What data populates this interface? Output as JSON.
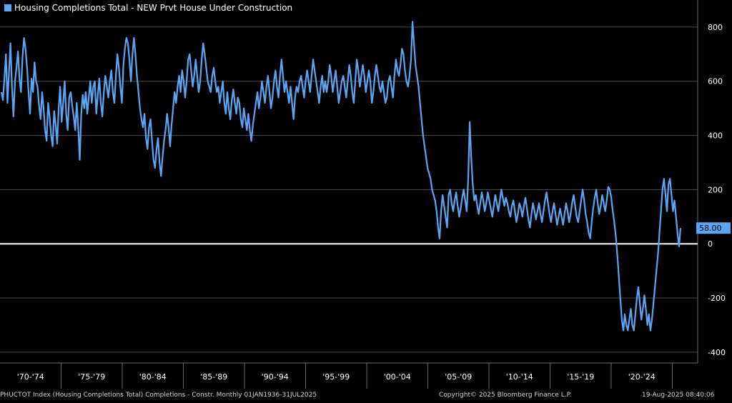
{
  "legend": {
    "label": "Housing Completions Total - NEW Prvt House Under Construction"
  },
  "footer": {
    "index": "PHUCTOT Index (Housing Completions Total) Completions - Constr. Monthly 01JAN1936-31JUL2025",
    "copyright": "Copyright© 2025 Bloomberg Finance L.P.",
    "timestamp": "19-Aug-2025 08:40:06"
  },
  "chart_data": {
    "type": "line",
    "title": "Housing Completions Total - NEW Prvt House Under Construction",
    "ylim": [
      -440,
      900
    ],
    "yticks": [
      800,
      600,
      400,
      200,
      0,
      -200,
      -400
    ],
    "x_tick_labels": [
      "'70-'74",
      "'75-'79",
      "'80-'84",
      "'85-'89",
      "'90-'94",
      "'95-'99",
      "'00-'04",
      "'05-'09",
      "'10-'14",
      "'15-'19",
      "'20-'24"
    ],
    "x_start": "1970-01",
    "x_end": "2025-07",
    "last_value": 58.0,
    "last_value_label": "58.00",
    "grid": true,
    "colors": {
      "line": "#5aa6f5",
      "zero_line": "#ffffff",
      "grid": "#4a4a4a",
      "last_value_bg": "#5aa6f5"
    },
    "series": [
      {
        "values": [
          560,
          530,
          610,
          700,
          520,
          630,
          740,
          580,
          470,
          600,
          650,
          710,
          610,
          560,
          690,
          760,
          720,
          650,
          560,
          480,
          610,
          560,
          670,
          600,
          580,
          510,
          460,
          560,
          500,
          420,
          380,
          520,
          470,
          400,
          360,
          490,
          440,
          370,
          500,
          580,
          450,
          520,
          600,
          480,
          420,
          540,
          560,
          510,
          470,
          420,
          520,
          430,
          310,
          480,
          550,
          500,
          560,
          480,
          540,
          600,
          520,
          580,
          600,
          480,
          550,
          610,
          520,
          470,
          560,
          620,
          580,
          540,
          600,
          640,
          560,
          520,
          620,
          700,
          650,
          580,
          520,
          660,
          720,
          760,
          740,
          680,
          600,
          700,
          760,
          700,
          620,
          560,
          500,
          460,
          430,
          480,
          390,
          350,
          430,
          460,
          380,
          310,
          280,
          350,
          390,
          300,
          250,
          320,
          380,
          420,
          480,
          430,
          360,
          440,
          500,
          560,
          520,
          580,
          620,
          560,
          640,
          600,
          540,
          600,
          680,
          700,
          640,
          580,
          620,
          680,
          620,
          560,
          600,
          680,
          740,
          700,
          650,
          600,
          580,
          560,
          620,
          650,
          600,
          560,
          580,
          520,
          560,
          600,
          520,
          480,
          560,
          500,
          460,
          530,
          570,
          520,
          480,
          540,
          520,
          460,
          430,
          500,
          460,
          420,
          480,
          420,
          380,
          440,
          480,
          520,
          560,
          500,
          540,
          600,
          560,
          520,
          580,
          620,
          560,
          500,
          540,
          600,
          640,
          580,
          540,
          620,
          680,
          620,
          560,
          600,
          560,
          520,
          580,
          520,
          460,
          540,
          580,
          560,
          600,
          620,
          580,
          540,
          600,
          640,
          600,
          560,
          620,
          680,
          640,
          600,
          560,
          520,
          580,
          620,
          560,
          600,
          560,
          600,
          660,
          620,
          560,
          600,
          640,
          580,
          520,
          560,
          600,
          620,
          580,
          540,
          600,
          660,
          620,
          560,
          520,
          600,
          680,
          640,
          580,
          620,
          660,
          620,
          560,
          600,
          640,
          600,
          520,
          560,
          620,
          660,
          620,
          580,
          560,
          600,
          560,
          520,
          540,
          600,
          620,
          580,
          540,
          620,
          680,
          640,
          620,
          660,
          720,
          700,
          640,
          600,
          580,
          620,
          680,
          820,
          740,
          660,
          620,
          580,
          520,
          460,
          400,
          360,
          320,
          280,
          260,
          240,
          200,
          180,
          160,
          120,
          60,
          20,
          120,
          180,
          140,
          100,
          60,
          180,
          200,
          150,
          120,
          160,
          190,
          140,
          100,
          130,
          170,
          200,
          160,
          120,
          240,
          450,
          320,
          220,
          160,
          180,
          140,
          110,
          150,
          190,
          160,
          120,
          150,
          190,
          160,
          130,
          100,
          140,
          180,
          150,
          120,
          160,
          200,
          170,
          140,
          170,
          150,
          120,
          100,
          140,
          160,
          120,
          80,
          110,
          150,
          130,
          100,
          140,
          170,
          130,
          90,
          60,
          110,
          150,
          120,
          90,
          120,
          150,
          110,
          80,
          120,
          160,
          190,
          150,
          110,
          80,
          120,
          150,
          110,
          70,
          100,
          130,
          100,
          70,
          110,
          150,
          120,
          80,
          110,
          150,
          180,
          140,
          100,
          80,
          120,
          160,
          200,
          160,
          110,
          80,
          40,
          20,
          80,
          130,
          170,
          200,
          150,
          110,
          140,
          180,
          150,
          120,
          160,
          210,
          200,
          170,
          120,
          80,
          30,
          -40,
          -120,
          -200,
          -280,
          -320,
          -260,
          -300,
          -320,
          -280,
          -240,
          -300,
          -320,
          -260,
          -200,
          -160,
          -220,
          -280,
          -240,
          -190,
          -240,
          -300,
          -260,
          -320,
          -280,
          -220,
          -160,
          -100,
          -40,
          40,
          120,
          200,
          240,
          180,
          120,
          220,
          240,
          180,
          120,
          160,
          100,
          40,
          -10,
          58
        ]
      }
    ]
  }
}
